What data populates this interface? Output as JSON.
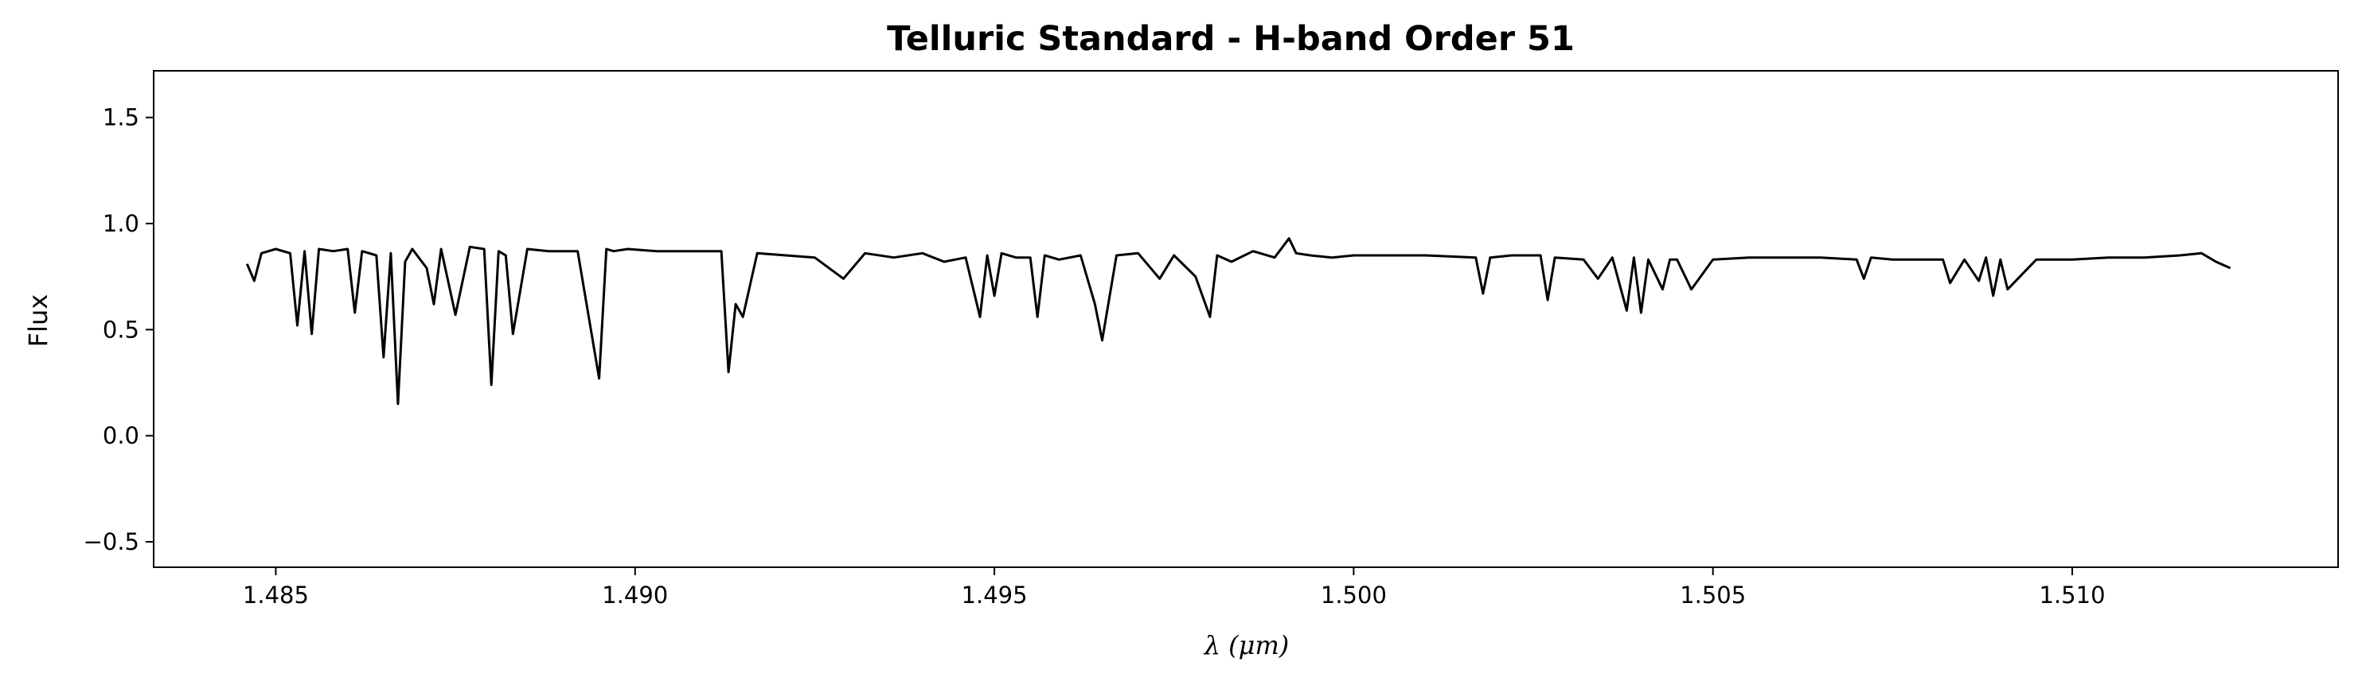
{
  "chart_data": {
    "type": "line",
    "title": "Telluric Standard - H-band Order 51",
    "xlabel": "λ (μm)",
    "ylabel": "Flux",
    "xlim": [
      1.4833,
      1.5137
    ],
    "ylim": [
      -0.62,
      1.72
    ],
    "x_ticks": [
      1.485,
      1.49,
      1.495,
      1.5,
      1.505,
      1.51
    ],
    "x_tick_labels": [
      "1.485",
      "1.490",
      "1.495",
      "1.500",
      "1.505",
      "1.510"
    ],
    "y_ticks": [
      -0.5,
      0.0,
      0.5,
      1.0,
      1.5
    ],
    "y_tick_labels": [
      "−0.5",
      "0.0",
      "0.5",
      "1.0",
      "1.5"
    ],
    "grid": false,
    "series": [
      {
        "color": "#000000",
        "x": [
          1.4846,
          1.4847,
          1.4848,
          1.485,
          1.4852,
          1.4853,
          1.4854,
          1.4855,
          1.4856,
          1.4858,
          1.486,
          1.4861,
          1.4862,
          1.4864,
          1.4865,
          1.4866,
          1.4867,
          1.4868,
          1.4869,
          1.4871,
          1.4872,
          1.4873,
          1.4875,
          1.4877,
          1.4879,
          1.488,
          1.4881,
          1.4882,
          1.4883,
          1.4885,
          1.4888,
          1.4892,
          1.4895,
          1.4896,
          1.4897,
          1.4899,
          1.4903,
          1.4908,
          1.4912,
          1.4913,
          1.4914,
          1.4915,
          1.4917,
          1.4921,
          1.4925,
          1.4929,
          1.4932,
          1.4936,
          1.494,
          1.4943,
          1.4946,
          1.4948,
          1.4949,
          1.495,
          1.4951,
          1.4953,
          1.4955,
          1.4956,
          1.4957,
          1.4959,
          1.4962,
          1.4964,
          1.4965,
          1.4967,
          1.497,
          1.4973,
          1.4975,
          1.4978,
          1.498,
          1.4981,
          1.4983,
          1.4986,
          1.4989,
          1.4991,
          1.4992,
          1.4994,
          1.4997,
          1.5,
          1.5005,
          1.501,
          1.5017,
          1.5018,
          1.5019,
          1.5022,
          1.5026,
          1.5027,
          1.5028,
          1.5032,
          1.5034,
          1.5036,
          1.5038,
          1.5039,
          1.504,
          1.5041,
          1.5043,
          1.5044,
          1.5045,
          1.5047,
          1.505,
          1.5055,
          1.506,
          1.5065,
          1.507,
          1.5071,
          1.5072,
          1.5075,
          1.508,
          1.5082,
          1.5083,
          1.5085,
          1.5087,
          1.5088,
          1.5089,
          1.509,
          1.5091,
          1.5095,
          1.51,
          1.5105,
          1.511,
          1.5115,
          1.5118,
          1.512,
          1.5122
        ],
        "y": [
          0.81,
          0.73,
          0.86,
          0.88,
          0.86,
          0.52,
          0.87,
          0.48,
          0.88,
          0.87,
          0.88,
          0.58,
          0.87,
          0.85,
          0.37,
          0.86,
          0.15,
          0.82,
          0.88,
          0.79,
          0.62,
          0.88,
          0.57,
          0.89,
          0.88,
          0.24,
          0.87,
          0.85,
          0.48,
          0.88,
          0.87,
          0.87,
          0.27,
          0.88,
          0.87,
          0.88,
          0.87,
          0.87,
          0.87,
          0.3,
          0.62,
          0.56,
          0.86,
          0.85,
          0.84,
          0.74,
          0.86,
          0.84,
          0.86,
          0.82,
          0.84,
          0.56,
          0.85,
          0.66,
          0.86,
          0.84,
          0.84,
          0.56,
          0.85,
          0.83,
          0.85,
          0.62,
          0.45,
          0.85,
          0.86,
          0.74,
          0.85,
          0.75,
          0.56,
          0.85,
          0.82,
          0.87,
          0.84,
          0.93,
          0.86,
          0.85,
          0.84,
          0.85,
          0.85,
          0.85,
          0.84,
          0.67,
          0.84,
          0.85,
          0.85,
          0.64,
          0.84,
          0.83,
          0.74,
          0.84,
          0.59,
          0.84,
          0.58,
          0.83,
          0.69,
          0.83,
          0.83,
          0.69,
          0.83,
          0.84,
          0.84,
          0.84,
          0.83,
          0.74,
          0.84,
          0.83,
          0.83,
          0.83,
          0.72,
          0.83,
          0.73,
          0.84,
          0.66,
          0.83,
          0.69,
          0.83,
          0.83,
          0.84,
          0.84,
          0.85,
          0.86,
          0.82,
          0.79
        ]
      }
    ]
  }
}
